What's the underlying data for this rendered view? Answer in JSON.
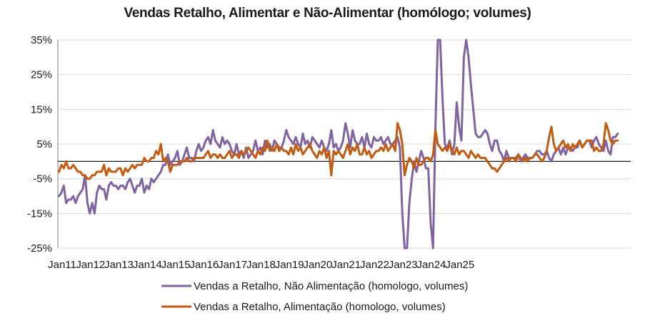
{
  "chart_data": {
    "type": "line",
    "title": "Vendas Retalho, Alimentar e Não-Alimentar  (homólogo; volumes)",
    "xlabel": "",
    "ylabel": "",
    "ylim": [
      -25,
      35
    ],
    "yticks": [
      "35%",
      "25%",
      "15%",
      "5%",
      "-5%",
      "-15%",
      "-25%"
    ],
    "yticks_values": [
      35,
      25,
      15,
      5,
      -5,
      -15,
      -25
    ],
    "xticks": [
      "Jan11",
      "Jan12",
      "Jan13",
      "Jan14",
      "Jan15",
      "Jan16",
      "Jan17",
      "Jan18",
      "Jan19",
      "Jan20",
      "Jan21",
      "Jan22",
      "Jan23",
      "Jan24",
      "Jan25"
    ],
    "x_start": "Jan11",
    "x_end": "Jul25",
    "grid": "horizontal",
    "legend_position": "bottom",
    "series": [
      {
        "name": "Vendas a Retalho, Não Alimentação (homologo, volumes)",
        "color": "#8064A2",
        "values": [
          -10,
          -9,
          -7,
          -12,
          -11,
          -11,
          -10,
          -12,
          -10,
          -9,
          -8,
          -4,
          -12,
          -15,
          -12,
          -15,
          -9,
          -7,
          -8,
          -8,
          -11,
          -7,
          -6,
          -7,
          -7,
          -8,
          -7,
          -7,
          -8,
          -6,
          -5,
          -7,
          -9,
          -7,
          -7,
          -5,
          -9,
          -7,
          -8,
          -5,
          -6,
          -5,
          -4,
          -3,
          -1,
          -1,
          2,
          -1,
          0,
          1,
          3,
          -1,
          0,
          2,
          4,
          1,
          1,
          0,
          3,
          5,
          3,
          4,
          6,
          7,
          5,
          9,
          6,
          5,
          4,
          7,
          5,
          6,
          5,
          3,
          2,
          5,
          2,
          3,
          1,
          4,
          1,
          2,
          3,
          6,
          3,
          4,
          2,
          6,
          4,
          5,
          3,
          6,
          5,
          4,
          4,
          6,
          9,
          7,
          6,
          5,
          7,
          5,
          4,
          8,
          5,
          6,
          4,
          7,
          6,
          5,
          4,
          6,
          4,
          3,
          5,
          9,
          4,
          5,
          3,
          4,
          6,
          11,
          8,
          4,
          9,
          6,
          5,
          5,
          7,
          4,
          8,
          5,
          4,
          7,
          6,
          6,
          7,
          5,
          6,
          7,
          5,
          5,
          6,
          7,
          4,
          -15,
          -25,
          -25,
          -12,
          -5,
          0,
          -3,
          0,
          3,
          1,
          -2,
          -2,
          -18,
          -25,
          10,
          35,
          35,
          18,
          5,
          4,
          6,
          2,
          5,
          17,
          10,
          6,
          30,
          35,
          30,
          22,
          15,
          8,
          7,
          7,
          8,
          9,
          8,
          5,
          3,
          6,
          6,
          3,
          2,
          0,
          3,
          1,
          1,
          1,
          1,
          2,
          0,
          1,
          2,
          1,
          1,
          1,
          2,
          3,
          3,
          2,
          2,
          3,
          1,
          0,
          2,
          3,
          4,
          2,
          4,
          2,
          4,
          4,
          3,
          4,
          4,
          6,
          4,
          5,
          6,
          6,
          4,
          6,
          7,
          5,
          4,
          3,
          6,
          3,
          2,
          7,
          7,
          8
        ]
      },
      {
        "name": "Vendas a Retalho, Alimentação (homologo, volumes)",
        "color": "#C55A11",
        "values": [
          -3,
          -1,
          -2,
          0,
          -2,
          -2,
          -1,
          -2,
          -3,
          -3,
          -4,
          -4,
          -5,
          -5,
          -4,
          -4,
          -3,
          -3,
          -3,
          -1,
          -4,
          -2,
          -3,
          -3,
          -3,
          -2,
          -2,
          -4,
          -2,
          -3,
          -2,
          -1,
          -2,
          -1,
          -1,
          -1,
          1,
          0,
          0,
          1,
          1,
          3,
          2,
          5,
          0,
          1,
          0,
          -3,
          -1,
          -1,
          -1,
          0,
          0,
          0,
          1,
          0,
          0,
          1,
          1,
          1,
          1,
          1,
          2,
          3,
          1,
          2,
          2,
          1,
          2,
          1,
          1,
          2,
          3,
          1,
          2,
          2,
          1,
          3,
          2,
          3,
          4,
          3,
          2,
          1,
          3,
          2,
          4,
          3,
          6,
          3,
          4,
          3,
          5,
          3,
          4,
          3,
          3,
          2,
          4,
          2,
          5,
          3,
          4,
          2,
          3,
          4,
          5,
          3,
          2,
          1,
          3,
          2,
          4,
          1,
          3,
          -4,
          3,
          2,
          3,
          2,
          1,
          3,
          5,
          2,
          4,
          3,
          5,
          2,
          2,
          4,
          2,
          3,
          1,
          2,
          3,
          3,
          4,
          3,
          5,
          3,
          4,
          5,
          3,
          11,
          9,
          5,
          -4,
          -1,
          1,
          0,
          -2,
          1,
          -1,
          -1,
          0,
          1,
          1,
          0,
          2,
          9,
          5,
          4,
          3,
          4,
          3,
          5,
          3,
          2,
          4,
          2,
          3,
          3,
          2,
          1,
          3,
          2,
          1,
          2,
          1,
          1,
          1,
          0,
          -1,
          -2,
          -2,
          -3,
          -2,
          -1,
          0,
          1,
          0,
          1,
          1,
          0,
          2,
          1,
          0,
          1,
          0,
          1,
          1,
          2,
          2,
          1,
          0,
          1,
          3,
          7,
          10,
          5,
          3,
          4,
          5,
          6,
          4,
          5,
          3,
          5,
          4,
          5,
          6,
          4,
          5,
          6,
          6,
          6,
          3,
          4,
          3,
          3,
          5,
          11,
          9,
          6,
          5,
          6,
          6
        ]
      }
    ]
  }
}
